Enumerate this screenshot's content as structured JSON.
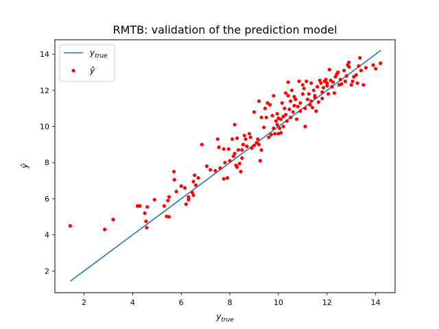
{
  "chart_data": {
    "type": "scatter",
    "title": "RMTB: validation of the prediction model",
    "xlabel": "y_true",
    "ylabel": "ŷ",
    "xlim": [
      0.8,
      14.8
    ],
    "ylim": [
      0.8,
      14.8
    ],
    "xticks": [
      2,
      4,
      6,
      8,
      10,
      12,
      14
    ],
    "yticks": [
      2,
      4,
      6,
      8,
      10,
      12,
      14
    ],
    "grid": false,
    "legend": {
      "placement": "top-left",
      "entries": [
        "y_true",
        "ŷ"
      ]
    },
    "series": [
      {
        "name": "y_true",
        "kind": "line",
        "color": "#1f77b4",
        "x": [
          1.43,
          14.22
        ],
        "y": [
          1.43,
          14.22
        ]
      },
      {
        "name": "ŷ",
        "kind": "scatter",
        "color": "#ff0000",
        "points": [
          [
            1.43,
            4.5
          ],
          [
            2.85,
            4.3
          ],
          [
            3.2,
            4.85
          ],
          [
            4.2,
            5.6
          ],
          [
            4.3,
            5.6
          ],
          [
            4.5,
            5.2
          ],
          [
            4.55,
            4.75
          ],
          [
            4.58,
            4.4
          ],
          [
            4.6,
            5.55
          ],
          [
            4.9,
            5.95
          ],
          [
            5.3,
            5.6
          ],
          [
            5.4,
            5.02
          ],
          [
            5.5,
            5.0
          ],
          [
            5.45,
            5.9
          ],
          [
            5.5,
            6.1
          ],
          [
            5.7,
            7.5
          ],
          [
            5.72,
            7.05
          ],
          [
            5.8,
            6.4
          ],
          [
            6.0,
            6.7
          ],
          [
            6.15,
            6.6
          ],
          [
            6.2,
            5.7
          ],
          [
            6.3,
            5.95
          ],
          [
            6.3,
            6.1
          ],
          [
            6.45,
            6.35
          ],
          [
            6.5,
            6.2
          ],
          [
            6.55,
            7.3
          ],
          [
            6.5,
            6.95
          ],
          [
            6.6,
            6.75
          ],
          [
            6.7,
            7.15
          ],
          [
            6.85,
            9.0
          ],
          [
            7.05,
            7.8
          ],
          [
            7.2,
            7.6
          ],
          [
            7.4,
            7.55
          ],
          [
            7.5,
            9.3
          ],
          [
            7.55,
            8.85
          ],
          [
            7.6,
            7.7
          ],
          [
            7.75,
            8.75
          ],
          [
            7.75,
            7.1
          ],
          [
            7.8,
            8.0
          ],
          [
            7.9,
            7.15
          ],
          [
            7.95,
            8.75
          ],
          [
            8.0,
            8.1
          ],
          [
            8.1,
            9.3
          ],
          [
            8.15,
            8.35
          ],
          [
            8.2,
            10.1
          ],
          [
            8.2,
            8.5
          ],
          [
            8.25,
            7.85
          ],
          [
            8.3,
            7.75
          ],
          [
            8.3,
            9.35
          ],
          [
            8.35,
            8.7
          ],
          [
            8.4,
            7.95
          ],
          [
            8.45,
            7.5
          ],
          [
            8.5,
            8.25
          ],
          [
            8.5,
            8.7
          ],
          [
            8.55,
            9.0
          ],
          [
            8.6,
            9.5
          ],
          [
            8.65,
            9.3
          ],
          [
            8.7,
            8.9
          ],
          [
            8.8,
            9.6
          ],
          [
            8.85,
            9.4
          ],
          [
            8.9,
            8.8
          ],
          [
            9.0,
            8.95
          ],
          [
            9.0,
            10.8
          ],
          [
            9.1,
            9.1
          ],
          [
            9.15,
            9.3
          ],
          [
            9.2,
            11.4
          ],
          [
            9.2,
            9.0
          ],
          [
            9.25,
            8.1
          ],
          [
            9.3,
            8.7
          ],
          [
            9.3,
            10.5
          ],
          [
            9.4,
            9.95
          ],
          [
            9.45,
            11.0
          ],
          [
            9.5,
            10.5
          ],
          [
            9.55,
            11.3
          ],
          [
            9.6,
            9.4
          ],
          [
            9.65,
            11.2
          ],
          [
            9.7,
            9.55
          ],
          [
            9.75,
            10.6
          ],
          [
            9.8,
            9.9
          ],
          [
            9.8,
            11.7
          ],
          [
            9.85,
            9.6
          ],
          [
            9.9,
            10.3
          ],
          [
            9.95,
            10.1
          ],
          [
            10.0,
            9.6
          ],
          [
            10.0,
            10.45
          ],
          [
            10.05,
            9.9
          ],
          [
            10.1,
            9.65
          ],
          [
            10.1,
            10.4
          ],
          [
            10.15,
            11.3
          ],
          [
            10.2,
            10.0
          ],
          [
            10.2,
            10.55
          ],
          [
            10.25,
            11.0
          ],
          [
            10.3,
            11.85
          ],
          [
            10.3,
            10.65
          ],
          [
            10.35,
            10.3
          ],
          [
            10.4,
            11.7
          ],
          [
            10.4,
            12.45
          ],
          [
            10.45,
            10.95
          ],
          [
            10.5,
            10.5
          ],
          [
            10.5,
            11.4
          ],
          [
            10.55,
            12.0
          ],
          [
            10.6,
            10.8
          ],
          [
            10.65,
            11.15
          ],
          [
            10.7,
            11.5
          ],
          [
            10.75,
            10.4
          ],
          [
            10.8,
            11.1
          ],
          [
            10.85,
            12.5
          ],
          [
            10.9,
            11.3
          ],
          [
            10.9,
            10.85
          ],
          [
            11.0,
            11.8
          ],
          [
            11.0,
            12.3
          ],
          [
            11.05,
            12.1
          ],
          [
            11.1,
            11.0
          ],
          [
            11.1,
            10.0
          ],
          [
            11.15,
            12.5
          ],
          [
            11.2,
            11.5
          ],
          [
            11.25,
            11.8
          ],
          [
            11.3,
            11.2
          ],
          [
            11.35,
            11.4
          ],
          [
            11.35,
            12.4
          ],
          [
            11.4,
            11.05
          ],
          [
            11.45,
            12.0
          ],
          [
            11.5,
            11.6
          ],
          [
            11.5,
            11.7
          ],
          [
            11.55,
            10.85
          ],
          [
            11.6,
            12.2
          ],
          [
            11.65,
            11.35
          ],
          [
            11.7,
            12.55
          ],
          [
            11.75,
            12.4
          ],
          [
            11.8,
            11.9
          ],
          [
            11.85,
            12.15
          ],
          [
            11.9,
            12.5
          ],
          [
            11.95,
            12.6
          ],
          [
            12.0,
            12.25
          ],
          [
            12.05,
            11.8
          ],
          [
            12.1,
            13.15
          ],
          [
            12.15,
            12.55
          ],
          [
            12.2,
            12.2
          ],
          [
            12.25,
            12.45
          ],
          [
            12.3,
            11.85
          ],
          [
            12.35,
            12.75
          ],
          [
            12.4,
            12.9
          ],
          [
            12.45,
            13.0
          ],
          [
            12.5,
            12.3
          ],
          [
            12.55,
            12.6
          ],
          [
            12.6,
            12.35
          ],
          [
            12.7,
            13.1
          ],
          [
            12.75,
            12.5
          ],
          [
            12.8,
            12.8
          ],
          [
            12.85,
            13.4
          ],
          [
            12.9,
            13.3
          ],
          [
            12.9,
            13.55
          ],
          [
            13.0,
            12.3
          ],
          [
            13.05,
            12.5
          ],
          [
            13.1,
            12.75
          ],
          [
            13.2,
            12.85
          ],
          [
            13.25,
            12.4
          ],
          [
            13.3,
            13.35
          ],
          [
            13.35,
            13.8
          ],
          [
            13.4,
            13.1
          ],
          [
            13.5,
            12.3
          ],
          [
            13.6,
            13.25
          ],
          [
            13.9,
            13.4
          ],
          [
            14.0,
            13.2
          ],
          [
            14.2,
            13.5
          ],
          [
            12.0,
            12.4
          ],
          [
            11.8,
            11.55
          ],
          [
            10.65,
            11.65
          ],
          [
            9.95,
            10.7
          ]
        ]
      }
    ]
  }
}
